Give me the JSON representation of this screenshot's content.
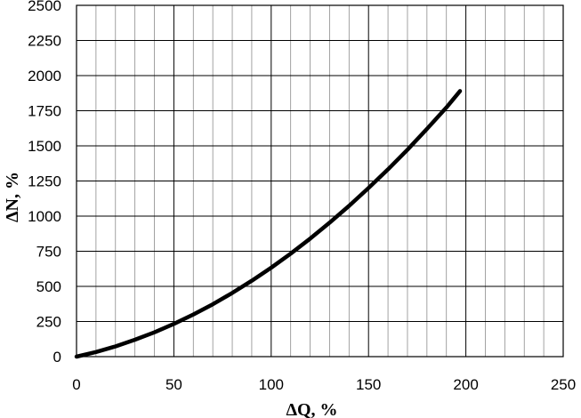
{
  "chart_data": {
    "type": "line",
    "title": "",
    "xlabel": "ΔQ, %",
    "ylabel": "ΔN, %",
    "xlim": [
      0,
      250
    ],
    "ylim": [
      0,
      2500
    ],
    "x_major_ticks": [
      "0",
      "50",
      "100",
      "150",
      "200",
      "250"
    ],
    "x_minor_step": 10,
    "y_ticks": [
      "0",
      "250",
      "500",
      "750",
      "1000",
      "1250",
      "1500",
      "1750",
      "2000",
      "2250",
      "2500"
    ],
    "grid": true,
    "legend": "none",
    "series": [
      {
        "color": "#000000",
        "x": [
          0,
          10,
          20,
          30,
          40,
          50,
          60,
          70,
          80,
          90,
          100,
          110,
          120,
          130,
          140,
          150,
          160,
          170,
          180,
          190,
          197
        ],
        "y": [
          0,
          33,
          73,
          120,
          173,
          233,
          300,
          373,
          453,
          540,
          633,
          733,
          840,
          953,
          1073,
          1200,
          1333,
          1473,
          1620,
          1773,
          1890
        ]
      }
    ]
  }
}
